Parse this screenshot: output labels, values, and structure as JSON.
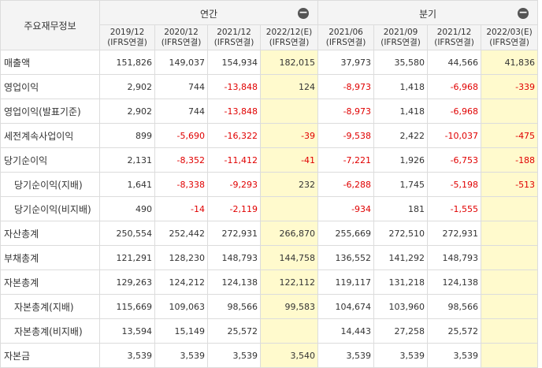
{
  "header": {
    "corner": "주요재무정보",
    "annual_title": "연간",
    "quarter_title": "분기",
    "annual_periods": [
      {
        "date": "2019/12",
        "basis": "(IFRS연결)"
      },
      {
        "date": "2020/12",
        "basis": "(IFRS연결)"
      },
      {
        "date": "2021/12",
        "basis": "(IFRS연결)"
      },
      {
        "date": "2022/12(E)",
        "basis": "(IFRS연결)"
      }
    ],
    "quarter_periods": [
      {
        "date": "2021/06",
        "basis": "(IFRS연결)"
      },
      {
        "date": "2021/09",
        "basis": "(IFRS연결)"
      },
      {
        "date": "2021/12",
        "basis": "(IFRS연결)"
      },
      {
        "date": "2022/03(E)",
        "basis": "(IFRS연결)"
      }
    ],
    "collapse_symbol": "−"
  },
  "rows": [
    {
      "label": "매출액",
      "sub": false,
      "values": [
        "151,826",
        "149,037",
        "154,934",
        "182,015",
        "37,973",
        "35,580",
        "44,566",
        "41,836"
      ]
    },
    {
      "label": "영업이익",
      "sub": false,
      "values": [
        "2,902",
        "744",
        "-13,848",
        "124",
        "-8,973",
        "1,418",
        "-6,968",
        "-339"
      ]
    },
    {
      "label": "영업이익(발표기준)",
      "sub": false,
      "values": [
        "2,902",
        "744",
        "-13,848",
        "",
        "-8,973",
        "1,418",
        "-6,968",
        ""
      ]
    },
    {
      "label": "세전계속사업이익",
      "sub": false,
      "values": [
        "899",
        "-5,690",
        "-16,322",
        "-39",
        "-9,538",
        "2,422",
        "-10,037",
        "-475"
      ]
    },
    {
      "label": "당기순이익",
      "sub": false,
      "values": [
        "2,131",
        "-8,352",
        "-11,412",
        "-41",
        "-7,221",
        "1,926",
        "-6,753",
        "-188"
      ]
    },
    {
      "label": "당기순이익(지배)",
      "sub": true,
      "values": [
        "1,641",
        "-8,338",
        "-9,293",
        "232",
        "-6,288",
        "1,745",
        "-5,198",
        "-513"
      ]
    },
    {
      "label": "당기순이익(비지배)",
      "sub": true,
      "values": [
        "490",
        "-14",
        "-2,119",
        "",
        "-934",
        "181",
        "-1,555",
        ""
      ]
    },
    {
      "label": "자산총계",
      "sub": false,
      "values": [
        "250,554",
        "252,442",
        "272,931",
        "266,870",
        "255,669",
        "272,510",
        "272,931",
        ""
      ]
    },
    {
      "label": "부채총계",
      "sub": false,
      "values": [
        "121,291",
        "128,230",
        "148,793",
        "144,758",
        "136,552",
        "141,292",
        "148,793",
        ""
      ]
    },
    {
      "label": "자본총계",
      "sub": false,
      "values": [
        "129,263",
        "124,212",
        "124,138",
        "122,112",
        "119,117",
        "131,218",
        "124,138",
        ""
      ]
    },
    {
      "label": "자본총계(지배)",
      "sub": true,
      "values": [
        "115,669",
        "109,063",
        "98,566",
        "99,583",
        "104,674",
        "103,960",
        "98,566",
        ""
      ]
    },
    {
      "label": "자본총계(비지배)",
      "sub": true,
      "values": [
        "13,594",
        "15,149",
        "25,572",
        "",
        "14,443",
        "27,258",
        "25,572",
        ""
      ]
    },
    {
      "label": "자본금",
      "sub": false,
      "values": [
        "3,539",
        "3,539",
        "3,539",
        "3,540",
        "3,539",
        "3,539",
        "3,539",
        ""
      ]
    }
  ],
  "colors": {
    "header_bg": "#f4f4f4",
    "estimate_bg": "#fffacd",
    "negative": "#e00000",
    "border": "#dcdcdc"
  }
}
